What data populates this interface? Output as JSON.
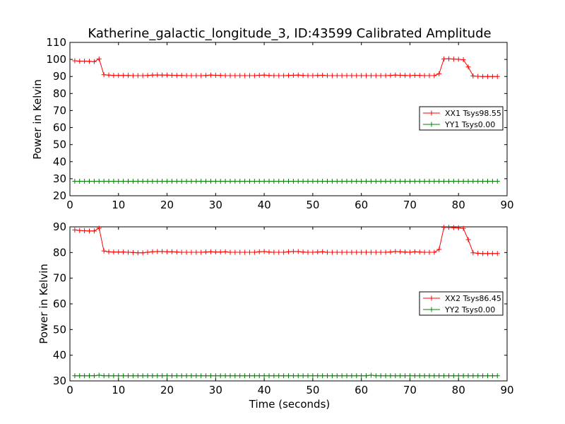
{
  "figure": {
    "title": "Katherine_galactic_longitude_3, ID:43599 Calibrated Amplitude",
    "xlabel": "Time (seconds)"
  },
  "chart_data": [
    {
      "type": "line",
      "ylabel": "Power in Kelvin",
      "xlim": [
        0,
        90
      ],
      "ylim": [
        20,
        110
      ],
      "xticks": [
        "0",
        "10",
        "20",
        "30",
        "40",
        "50",
        "60",
        "70",
        "80",
        "90"
      ],
      "yticks": [
        "20",
        "30",
        "40",
        "50",
        "60",
        "70",
        "80",
        "90",
        "100",
        "110"
      ],
      "grid": false,
      "legend_position": "right",
      "x": [
        1,
        2,
        3,
        4,
        5,
        6,
        7,
        8,
        9,
        10,
        11,
        12,
        13,
        14,
        15,
        16,
        17,
        18,
        19,
        20,
        21,
        22,
        23,
        24,
        25,
        26,
        27,
        28,
        29,
        30,
        31,
        32,
        33,
        34,
        35,
        36,
        37,
        38,
        39,
        40,
        41,
        42,
        43,
        44,
        45,
        46,
        47,
        48,
        49,
        50,
        51,
        52,
        53,
        54,
        55,
        56,
        57,
        58,
        59,
        60,
        61,
        62,
        63,
        64,
        65,
        66,
        67,
        68,
        69,
        70,
        71,
        72,
        73,
        74,
        75,
        76,
        77,
        78,
        79,
        80,
        81,
        82,
        83,
        84,
        85,
        86,
        87,
        88
      ],
      "series": [
        {
          "name": "XX1 Tsys98.55",
          "color": "#ff0000",
          "values": [
            99.2,
            99.0,
            99.0,
            98.9,
            98.7,
            100.3,
            91.0,
            90.8,
            90.6,
            90.6,
            90.6,
            90.6,
            90.5,
            90.5,
            90.5,
            90.6,
            90.8,
            90.9,
            90.8,
            90.8,
            90.7,
            90.6,
            90.6,
            90.5,
            90.5,
            90.5,
            90.5,
            90.6,
            90.8,
            90.7,
            90.6,
            90.5,
            90.5,
            90.5,
            90.5,
            90.5,
            90.5,
            90.5,
            90.7,
            90.8,
            90.6,
            90.5,
            90.5,
            90.5,
            90.6,
            90.7,
            90.8,
            90.6,
            90.5,
            90.5,
            90.6,
            90.7,
            90.5,
            90.5,
            90.5,
            90.5,
            90.5,
            90.5,
            90.5,
            90.5,
            90.5,
            90.5,
            90.5,
            90.5,
            90.5,
            90.6,
            90.8,
            90.7,
            90.6,
            90.5,
            90.7,
            90.6,
            90.5,
            90.5,
            90.5,
            91.6,
            100.3,
            100.4,
            100.2,
            100.1,
            99.8,
            95.6,
            90.3,
            90.1,
            90.0,
            90.0,
            90.0,
            90.0
          ]
        },
        {
          "name": "YY1 Tsys0.00",
          "color": "#008000",
          "values": [
            28.5,
            28.5,
            28.5,
            28.5,
            28.5,
            28.5,
            28.5,
            28.5,
            28.5,
            28.5,
            28.5,
            28.5,
            28.5,
            28.5,
            28.5,
            28.5,
            28.5,
            28.5,
            28.5,
            28.5,
            28.5,
            28.5,
            28.5,
            28.5,
            28.5,
            28.5,
            28.5,
            28.5,
            28.5,
            28.5,
            28.5,
            28.5,
            28.5,
            28.5,
            28.5,
            28.5,
            28.5,
            28.5,
            28.5,
            28.5,
            28.5,
            28.5,
            28.5,
            28.5,
            28.5,
            28.5,
            28.5,
            28.5,
            28.5,
            28.5,
            28.5,
            28.5,
            28.5,
            28.5,
            28.5,
            28.5,
            28.5,
            28.5,
            28.5,
            28.5,
            28.5,
            28.5,
            28.5,
            28.5,
            28.5,
            28.5,
            28.5,
            28.5,
            28.5,
            28.5,
            28.5,
            28.5,
            28.5,
            28.5,
            28.5,
            28.5,
            28.5,
            28.5,
            28.5,
            28.5,
            28.5,
            28.5,
            28.5,
            28.5,
            28.5,
            28.5,
            28.5,
            28.5
          ]
        }
      ]
    },
    {
      "type": "line",
      "ylabel": "Power in Kelvin",
      "xlim": [
        0,
        90
      ],
      "ylim": [
        30,
        90
      ],
      "xticks": [
        "0",
        "10",
        "20",
        "30",
        "40",
        "50",
        "60",
        "70",
        "80",
        "90"
      ],
      "yticks": [
        "30",
        "40",
        "50",
        "60",
        "70",
        "80",
        "90"
      ],
      "grid": false,
      "legend_position": "right",
      "x": [
        1,
        2,
        3,
        4,
        5,
        6,
        7,
        8,
        9,
        10,
        11,
        12,
        13,
        14,
        15,
        16,
        17,
        18,
        19,
        20,
        21,
        22,
        23,
        24,
        25,
        26,
        27,
        28,
        29,
        30,
        31,
        32,
        33,
        34,
        35,
        36,
        37,
        38,
        39,
        40,
        41,
        42,
        43,
        44,
        45,
        46,
        47,
        48,
        49,
        50,
        51,
        52,
        53,
        54,
        55,
        56,
        57,
        58,
        59,
        60,
        61,
        62,
        63,
        64,
        65,
        66,
        67,
        68,
        69,
        70,
        71,
        72,
        73,
        74,
        75,
        76,
        77,
        78,
        79,
        80,
        81,
        82,
        83,
        84,
        85,
        86,
        87,
        88
      ],
      "series": [
        {
          "name": "XX2 Tsys86.45",
          "color": "#ff0000",
          "values": [
            88.8,
            88.6,
            88.5,
            88.4,
            88.4,
            89.5,
            80.6,
            80.3,
            80.2,
            80.2,
            80.2,
            80.1,
            80.0,
            79.9,
            79.9,
            80.1,
            80.3,
            80.4,
            80.4,
            80.3,
            80.3,
            80.2,
            80.1,
            80.1,
            80.1,
            80.1,
            80.1,
            80.2,
            80.3,
            80.2,
            80.2,
            80.3,
            80.1,
            80.1,
            80.1,
            80.1,
            80.1,
            80.1,
            80.3,
            80.4,
            80.2,
            80.1,
            80.1,
            80.1,
            80.3,
            80.4,
            80.4,
            80.2,
            80.1,
            80.1,
            80.2,
            80.3,
            80.1,
            80.1,
            80.1,
            80.1,
            80.1,
            80.1,
            80.1,
            80.1,
            80.1,
            80.1,
            80.1,
            80.1,
            80.1,
            80.2,
            80.4,
            80.3,
            80.2,
            80.1,
            80.3,
            80.2,
            80.1,
            80.1,
            80.1,
            81.2,
            89.8,
            89.8,
            89.7,
            89.6,
            89.4,
            85.0,
            79.9,
            79.7,
            79.6,
            79.6,
            79.6,
            79.6
          ]
        },
        {
          "name": "YY2 Tsys0.00",
          "color": "#008000",
          "values": [
            32.0,
            32.0,
            32.0,
            32.0,
            32.0,
            32.2,
            32.0,
            32.0,
            32.0,
            32.0,
            32.0,
            32.0,
            32.0,
            32.0,
            32.0,
            32.0,
            32.0,
            32.0,
            32.0,
            32.0,
            32.0,
            32.0,
            32.0,
            32.0,
            32.0,
            32.0,
            32.0,
            32.0,
            32.0,
            32.0,
            32.0,
            32.0,
            32.0,
            32.0,
            32.0,
            32.0,
            32.0,
            32.0,
            32.0,
            32.0,
            32.0,
            32.0,
            32.0,
            32.0,
            32.0,
            32.0,
            32.0,
            32.0,
            32.0,
            32.0,
            32.0,
            32.0,
            32.0,
            32.0,
            32.0,
            32.0,
            32.0,
            32.0,
            32.0,
            32.0,
            32.0,
            32.2,
            32.0,
            32.0,
            32.0,
            32.0,
            32.0,
            32.0,
            32.0,
            32.0,
            32.0,
            32.0,
            32.0,
            32.0,
            32.0,
            32.0,
            32.0,
            32.0,
            32.0,
            32.0,
            32.0,
            32.0,
            32.0,
            32.0,
            32.0,
            32.0,
            32.0,
            32.0
          ]
        }
      ]
    }
  ]
}
